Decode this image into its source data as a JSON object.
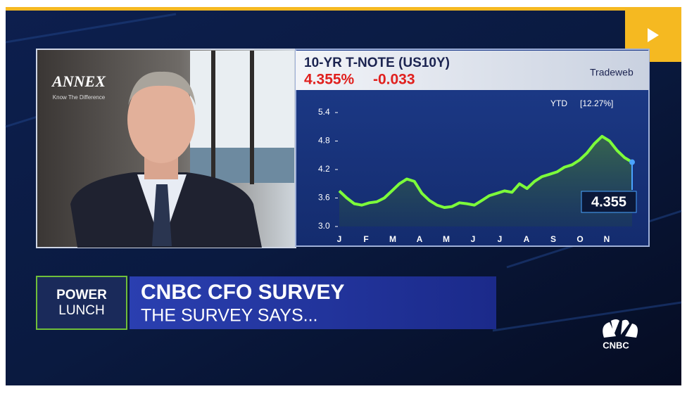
{
  "overlay": {
    "logo_top": "ANNEX",
    "logo_sub": "Know The Difference",
    "show_line1": "POWER",
    "show_line2": "LUNCH",
    "headline": "CNBC CFO SURVEY",
    "subheadline": "THE SURVEY SAYS...",
    "network": "CNBC"
  },
  "chart_data": {
    "type": "line",
    "title": "10-YR T-NOTE (US10Y)",
    "price": "4.355%",
    "change": "-0.033",
    "source": "Tradeweb",
    "period": "YTD",
    "period_change": "[12.27%]",
    "current_label": "4.355",
    "months": [
      "J",
      "F",
      "M",
      "A",
      "M",
      "J",
      "J",
      "A",
      "S",
      "O",
      "N"
    ],
    "values": [
      3.75,
      3.6,
      3.48,
      3.45,
      3.5,
      3.52,
      3.6,
      3.75,
      3.9,
      4.0,
      3.95,
      3.7,
      3.55,
      3.45,
      3.4,
      3.42,
      3.5,
      3.48,
      3.45,
      3.55,
      3.65,
      3.7,
      3.75,
      3.72,
      3.9,
      3.8,
      3.95,
      4.05,
      4.1,
      4.15,
      4.25,
      4.3,
      4.4,
      4.55,
      4.75,
      4.9,
      4.8,
      4.6,
      4.45,
      4.355
    ],
    "color": "#7dff3a",
    "ylim": [
      3.0,
      5.4
    ],
    "yticks": [
      5.4,
      4.8,
      4.2,
      3.6,
      {
        "value": 3,
        "label": "3.0"
      }
    ]
  }
}
